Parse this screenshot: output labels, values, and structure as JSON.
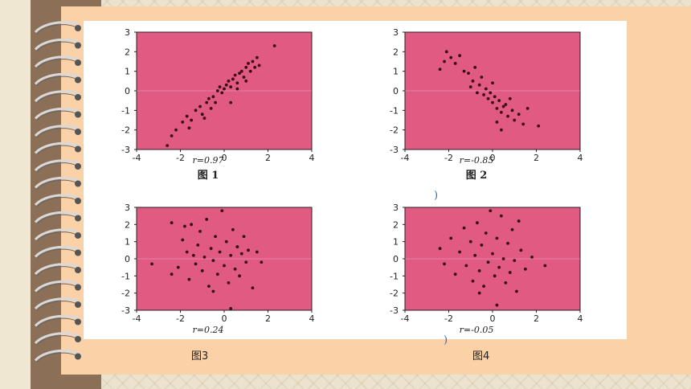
{
  "captions": {
    "fig3": "图3",
    "fig4": "图4"
  },
  "colors": {
    "plot_bg": "#e05a82",
    "point": "#3a0a14",
    "page": "#fbd1a8",
    "spine": "#8b6f57"
  },
  "chart_data": [
    {
      "type": "scatter",
      "title": "图 1",
      "annotation": "r=0.97",
      "xlim": [
        -4,
        4
      ],
      "ylim": [
        -3,
        3
      ],
      "xticks": [
        -4,
        -2,
        0,
        2,
        4
      ],
      "yticks": [
        -3,
        -2,
        -1,
        0,
        1,
        2,
        3
      ],
      "points": [
        [
          -2.6,
          -2.8
        ],
        [
          -2.4,
          -2.3
        ],
        [
          -2.2,
          -2.0
        ],
        [
          -1.9,
          -1.6
        ],
        [
          -1.7,
          -1.3
        ],
        [
          -1.5,
          -1.5
        ],
        [
          -1.3,
          -1.0
        ],
        [
          -1.1,
          -0.8
        ],
        [
          -1.0,
          -1.2
        ],
        [
          -0.8,
          -0.6
        ],
        [
          -0.7,
          -0.4
        ],
        [
          -0.5,
          -0.3
        ],
        [
          -0.4,
          -0.6
        ],
        [
          -0.3,
          0.0
        ],
        [
          -0.2,
          0.2
        ],
        [
          -0.1,
          -0.1
        ],
        [
          0.0,
          0.1
        ],
        [
          0.1,
          0.3
        ],
        [
          0.2,
          0.5
        ],
        [
          0.3,
          0.2
        ],
        [
          0.4,
          0.6
        ],
        [
          0.5,
          0.8
        ],
        [
          0.6,
          0.4
        ],
        [
          0.7,
          0.9
        ],
        [
          0.8,
          1.0
        ],
        [
          0.9,
          0.7
        ],
        [
          1.0,
          1.2
        ],
        [
          1.1,
          1.4
        ],
        [
          1.2,
          1.0
        ],
        [
          1.3,
          1.5
        ],
        [
          1.4,
          1.2
        ],
        [
          1.5,
          1.7
        ],
        [
          1.6,
          1.3
        ],
        [
          2.3,
          2.3
        ],
        [
          -1.6,
          -1.9
        ],
        [
          -0.9,
          -1.4
        ],
        [
          -0.6,
          -0.9
        ],
        [
          0.3,
          -0.6
        ],
        [
          0.6,
          0.1
        ],
        [
          1.0,
          0.5
        ]
      ]
    },
    {
      "type": "scatter",
      "title": "图 2",
      "annotation": "r=-0.85",
      "xlim": [
        -4,
        4
      ],
      "ylim": [
        -3,
        3
      ],
      "xticks": [
        -4,
        -2,
        0,
        2,
        4
      ],
      "yticks": [
        -3,
        -2,
        -1,
        0,
        1,
        2,
        3
      ],
      "points": [
        [
          -2.4,
          1.1
        ],
        [
          -2.1,
          2.0
        ],
        [
          -1.9,
          1.7
        ],
        [
          -1.7,
          1.4
        ],
        [
          -1.5,
          1.8
        ],
        [
          -1.3,
          1.0
        ],
        [
          -1.1,
          0.9
        ],
        [
          -0.9,
          0.5
        ],
        [
          -0.8,
          1.2
        ],
        [
          -0.6,
          0.3
        ],
        [
          -0.5,
          0.7
        ],
        [
          -0.4,
          -0.2
        ],
        [
          -0.3,
          0.1
        ],
        [
          -0.2,
          -0.4
        ],
        [
          -0.1,
          -0.1
        ],
        [
          0.0,
          -0.6
        ],
        [
          0.1,
          -0.3
        ],
        [
          0.2,
          -0.9
        ],
        [
          0.3,
          -0.5
        ],
        [
          0.4,
          -1.1
        ],
        [
          0.5,
          -0.8
        ],
        [
          0.6,
          -0.7
        ],
        [
          0.7,
          -1.3
        ],
        [
          0.8,
          -0.4
        ],
        [
          0.9,
          -1.0
        ],
        [
          1.0,
          -1.5
        ],
        [
          1.2,
          -1.2
        ],
        [
          1.4,
          -1.7
        ],
        [
          1.6,
          -0.9
        ],
        [
          2.1,
          -1.8
        ],
        [
          -1.0,
          0.2
        ],
        [
          -0.7,
          -0.1
        ],
        [
          0.0,
          0.4
        ],
        [
          0.4,
          -2.0
        ],
        [
          -2.2,
          1.5
        ],
        [
          0.2,
          -1.6
        ]
      ]
    },
    {
      "type": "scatter",
      "title": "图3",
      "annotation": "r=0.24",
      "xlim": [
        -4,
        4
      ],
      "ylim": [
        -3,
        3
      ],
      "xticks": [
        -4,
        -2,
        0,
        2,
        4
      ],
      "yticks": [
        -3,
        -2,
        -1,
        0,
        1,
        2,
        3
      ],
      "points": [
        [
          -3.3,
          -0.3
        ],
        [
          -2.4,
          -0.9
        ],
        [
          -2.1,
          -0.5
        ],
        [
          -1.9,
          1.1
        ],
        [
          -1.7,
          0.4
        ],
        [
          -1.6,
          -1.2
        ],
        [
          -1.5,
          2.0
        ],
        [
          -1.4,
          0.2
        ],
        [
          -1.3,
          -0.3
        ],
        [
          -1.2,
          0.8
        ],
        [
          -1.1,
          1.6
        ],
        [
          -1.0,
          -0.7
        ],
        [
          -0.9,
          0.1
        ],
        [
          -0.8,
          2.3
        ],
        [
          -0.7,
          -1.6
        ],
        [
          -0.6,
          0.6
        ],
        [
          -0.5,
          -0.1
        ],
        [
          -0.4,
          1.3
        ],
        [
          -0.3,
          -0.9
        ],
        [
          -0.2,
          0.4
        ],
        [
          -0.1,
          2.8
        ],
        [
          0.0,
          -0.4
        ],
        [
          0.1,
          1.0
        ],
        [
          0.2,
          -1.4
        ],
        [
          0.3,
          0.2
        ],
        [
          0.4,
          1.7
        ],
        [
          0.5,
          -0.6
        ],
        [
          0.6,
          0.7
        ],
        [
          0.7,
          -1.0
        ],
        [
          0.8,
          0.3
        ],
        [
          0.9,
          1.3
        ],
        [
          1.0,
          -0.2
        ],
        [
          1.1,
          0.5
        ],
        [
          1.3,
          -1.7
        ],
        [
          1.5,
          0.4
        ],
        [
          1.7,
          -0.2
        ],
        [
          -1.8,
          1.9
        ],
        [
          -0.5,
          -1.9
        ],
        [
          0.3,
          -2.9
        ],
        [
          -2.4,
          2.1
        ]
      ]
    },
    {
      "type": "scatter",
      "title": "图4",
      "annotation": "r=-0.05",
      "xlim": [
        -4,
        4
      ],
      "ylim": [
        -3,
        3
      ],
      "xticks": [
        -4,
        -2,
        0,
        2,
        4
      ],
      "yticks": [
        -3,
        -2,
        -1,
        0,
        1,
        2,
        3
      ],
      "points": [
        [
          -2.4,
          0.6
        ],
        [
          -2.2,
          -0.3
        ],
        [
          -1.9,
          1.2
        ],
        [
          -1.7,
          -0.9
        ],
        [
          -1.5,
          0.4
        ],
        [
          -1.3,
          1.8
        ],
        [
          -1.2,
          -0.4
        ],
        [
          -1.0,
          1.0
        ],
        [
          -0.9,
          -1.3
        ],
        [
          -0.8,
          0.2
        ],
        [
          -0.7,
          2.1
        ],
        [
          -0.6,
          -0.7
        ],
        [
          -0.5,
          0.8
        ],
        [
          -0.4,
          -1.6
        ],
        [
          -0.3,
          1.5
        ],
        [
          -0.2,
          -0.2
        ],
        [
          -0.1,
          2.8
        ],
        [
          0.0,
          0.3
        ],
        [
          0.1,
          -1.0
        ],
        [
          0.2,
          1.2
        ],
        [
          0.3,
          -0.5
        ],
        [
          0.4,
          2.5
        ],
        [
          0.5,
          0.0
        ],
        [
          0.6,
          -1.4
        ],
        [
          0.7,
          0.9
        ],
        [
          0.8,
          -0.8
        ],
        [
          0.9,
          1.7
        ],
        [
          1.0,
          -0.1
        ],
        [
          1.1,
          -1.9
        ],
        [
          1.3,
          0.5
        ],
        [
          1.5,
          -0.6
        ],
        [
          1.8,
          0.1
        ],
        [
          2.4,
          -0.4
        ],
        [
          -0.6,
          -2.0
        ],
        [
          0.2,
          -2.7
        ],
        [
          1.2,
          2.2
        ]
      ]
    }
  ]
}
